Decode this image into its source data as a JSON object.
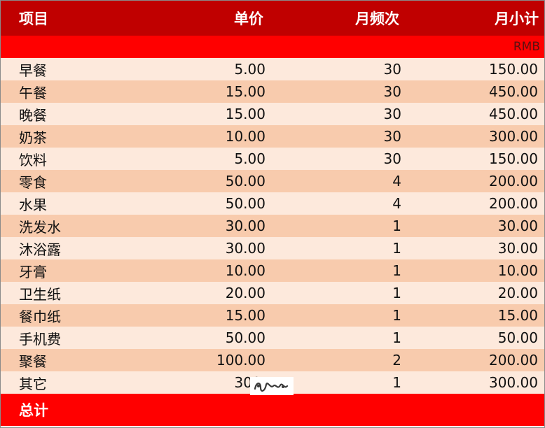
{
  "header": {
    "item": "项目",
    "price": "单价",
    "freq": "月频次",
    "subtotal": "月小计"
  },
  "unit": "RMB",
  "rows": [
    {
      "name": "早餐",
      "price": "5.00",
      "freq": "30",
      "subtotal": "150.00"
    },
    {
      "name": "午餐",
      "price": "15.00",
      "freq": "30",
      "subtotal": "450.00"
    },
    {
      "name": "晚餐",
      "price": "15.00",
      "freq": "30",
      "subtotal": "450.00"
    },
    {
      "name": "奶茶",
      "price": "10.00",
      "freq": "30",
      "subtotal": "300.00"
    },
    {
      "name": "饮料",
      "price": "5.00",
      "freq": "30",
      "subtotal": "150.00"
    },
    {
      "name": "零食",
      "price": "50.00",
      "freq": "4",
      "subtotal": "200.00"
    },
    {
      "name": "水果",
      "price": "50.00",
      "freq": "4",
      "subtotal": "200.00"
    },
    {
      "name": "洗发水",
      "price": "30.00",
      "freq": "1",
      "subtotal": "30.00"
    },
    {
      "name": "沐浴露",
      "price": "30.00",
      "freq": "1",
      "subtotal": "30.00"
    },
    {
      "name": "牙膏",
      "price": "10.00",
      "freq": "1",
      "subtotal": "10.00"
    },
    {
      "name": "卫生纸",
      "price": "20.00",
      "freq": "1",
      "subtotal": "20.00"
    },
    {
      "name": "餐巾纸",
      "price": "15.00",
      "freq": "1",
      "subtotal": "15.00"
    },
    {
      "name": "手机费",
      "price": "50.00",
      "freq": "1",
      "subtotal": "50.00"
    },
    {
      "name": "聚餐",
      "price": "100.00",
      "freq": "2",
      "subtotal": "200.00"
    },
    {
      "name": "其它",
      "price": "300.",
      "freq": "1",
      "subtotal": "300.00"
    }
  ],
  "total": {
    "label": "总计"
  },
  "colors": {
    "header_bg": "#c00000",
    "band_bg": "#ff0000",
    "row_light": "#fde9dc",
    "row_dark": "#f8cbad"
  }
}
